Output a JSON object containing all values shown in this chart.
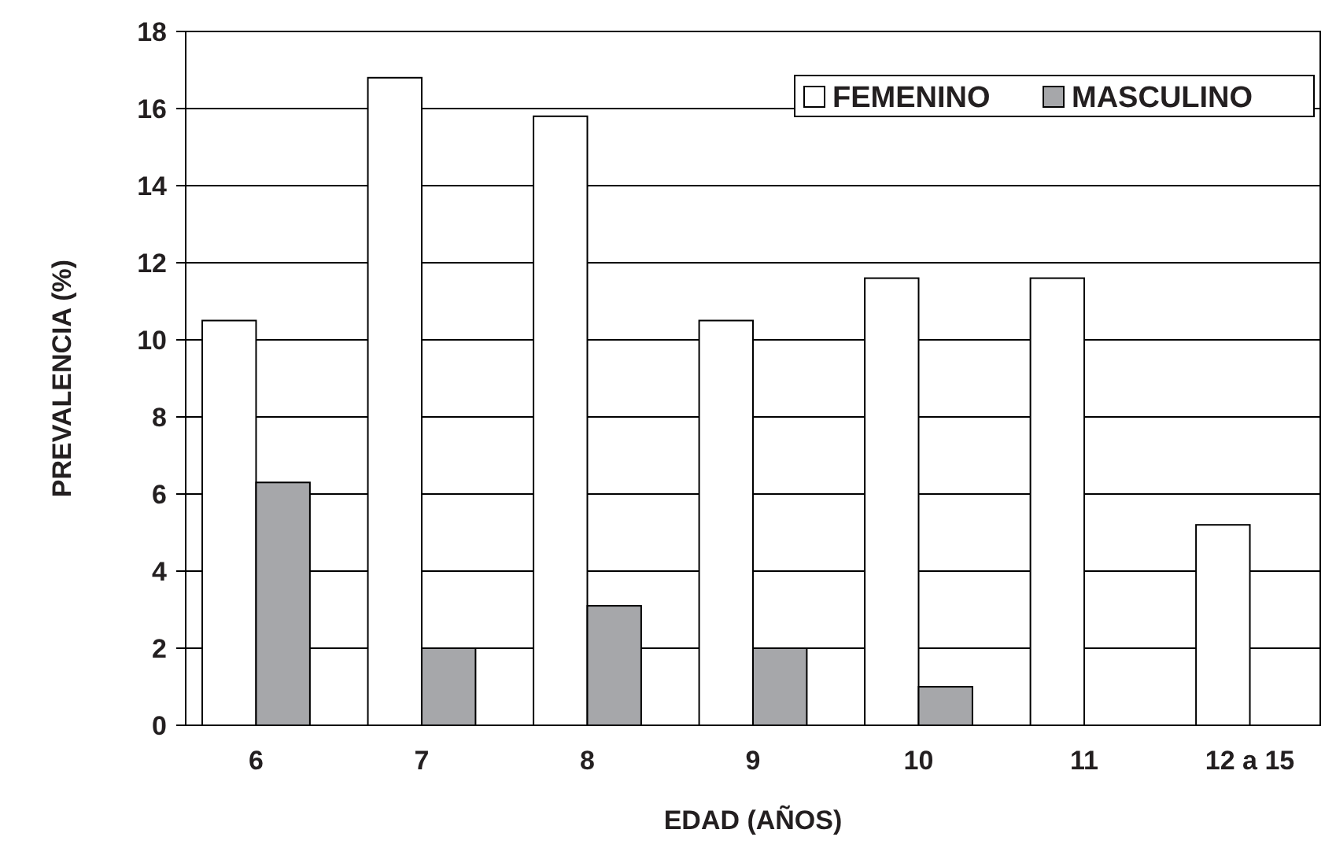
{
  "chart_data": {
    "type": "bar",
    "xlabel": "EDAD (AÑOS)",
    "ylabel": "PREVALENCIA (%)",
    "categories": [
      "6",
      "7",
      "8",
      "9",
      "10",
      "11",
      "12 a 15"
    ],
    "series": [
      {
        "name": "FEMENINO",
        "color": "#ffffff",
        "values": [
          10.5,
          16.8,
          15.8,
          10.5,
          11.6,
          11.6,
          5.2
        ]
      },
      {
        "name": "MASCULINO",
        "color": "#a6a7aa",
        "values": [
          6.3,
          2.0,
          3.1,
          2.0,
          1.0,
          0,
          0
        ]
      }
    ],
    "ylim": [
      0,
      18
    ],
    "yticks": [
      0,
      2,
      4,
      6,
      8,
      10,
      12,
      14,
      16,
      18
    ],
    "grid": "y",
    "legend": "top right"
  }
}
